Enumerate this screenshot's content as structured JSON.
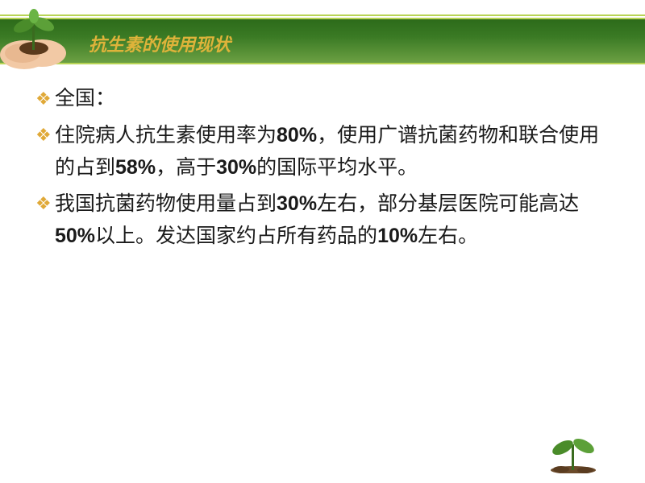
{
  "header": {
    "band_gradient": [
      "#2d6b1a",
      "#3a7a24",
      "#6ca043"
    ],
    "accent_line": "#b8d455",
    "title": "抗生素的使用现状",
    "title_color": "#deb33a"
  },
  "bullets": {
    "marker_color": "#e0a938",
    "text_color": "#1a1a1a",
    "items": [
      {
        "html": "全国："
      },
      {
        "html": "住院病人抗生素使用率为<b>80%</b>，使用广谱抗菌药物和联合使用的占到<b>58%</b>，高于<b>30%</b>的国际平均水平。"
      },
      {
        "html": "我国抗菌药物使用量占到<b>30%</b>左右，部分基层医院可能高达<b>50%</b>以上。发达国家约占所有药品的<b>10%</b>左右。"
      }
    ]
  },
  "decor": {
    "corner_hand_skin": "#f2c9a5",
    "corner_leaf": "#4a8c2a",
    "corner_stem": "#3a6b1f",
    "corner_soil": "#5b3a1c",
    "bottom_leaf": "#4a8c2a",
    "bottom_stem": "#3a6b1f",
    "bottom_soil": "#6b4a2a"
  }
}
